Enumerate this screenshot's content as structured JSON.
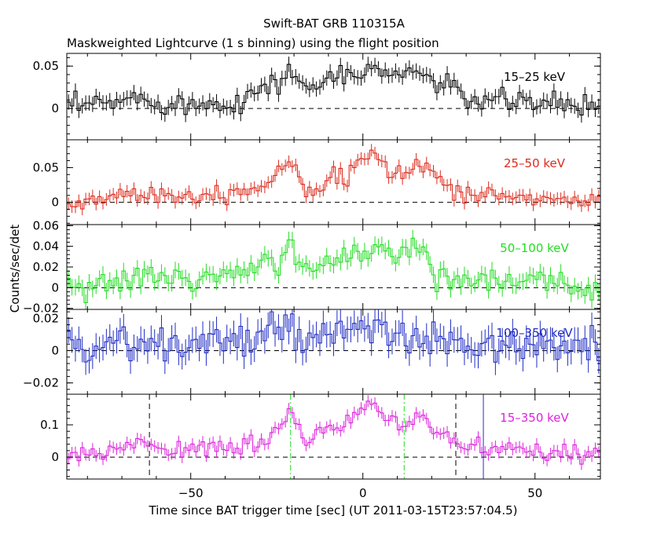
{
  "chart_data": {
    "type": "line",
    "title": "Swift-BAT GRB 110315A",
    "subtitle": "Maskweighted Lightcurve (1 s binning) using the flight position",
    "xlabel": "Time since BAT trigger time [sec] (UT 2011-03-15T23:57:04.5)",
    "ylabel": "Counts/sec/det",
    "xlim": [
      -86,
      69
    ],
    "x_ticks": [
      -50,
      0,
      50
    ],
    "x_tick_labels": [
      "−50",
      "0",
      "50"
    ],
    "panels": [
      {
        "band": "15–25 keV",
        "color": "#000000",
        "ylim": [
          -0.037,
          0.065
        ],
        "y_ticks": [
          0,
          0.05
        ],
        "y_tick_labels": [
          "0",
          "0.05"
        ],
        "error": 0.009,
        "envelope": [
          [
            -86,
            0.0
          ],
          [
            -75,
            0.006
          ],
          [
            -65,
            0.012
          ],
          [
            -50,
            0.004
          ],
          [
            -38,
            0.008
          ],
          [
            -30,
            0.02
          ],
          [
            -22,
            0.04
          ],
          [
            -18,
            0.035
          ],
          [
            -14,
            0.02
          ],
          [
            -10,
            0.04
          ],
          [
            -5,
            0.035
          ],
          [
            0,
            0.04
          ],
          [
            4,
            0.05
          ],
          [
            10,
            0.038
          ],
          [
            16,
            0.045
          ],
          [
            22,
            0.03
          ],
          [
            27,
            0.02
          ],
          [
            30,
            0.012
          ],
          [
            40,
            0.008
          ],
          [
            50,
            0.007
          ],
          [
            60,
            0.004
          ],
          [
            69,
            0.002
          ]
        ]
      },
      {
        "band": "25–50 keV",
        "color": "#dd2a1c",
        "ylim": [
          -0.032,
          0.09
        ],
        "y_ticks": [
          0,
          0.05
        ],
        "y_tick_labels": [
          "0",
          "0.05"
        ],
        "error": 0.009,
        "envelope": [
          [
            -86,
            -0.005
          ],
          [
            -75,
            0.008
          ],
          [
            -65,
            0.015
          ],
          [
            -55,
            0.01
          ],
          [
            -45,
            0.012
          ],
          [
            -35,
            0.018
          ],
          [
            -28,
            0.025
          ],
          [
            -22,
            0.06
          ],
          [
            -19,
            0.05
          ],
          [
            -17,
            0.02
          ],
          [
            -12,
            0.03
          ],
          [
            -5,
            0.035
          ],
          [
            0,
            0.055
          ],
          [
            3,
            0.075
          ],
          [
            7,
            0.045
          ],
          [
            12,
            0.04
          ],
          [
            16,
            0.06
          ],
          [
            21,
            0.04
          ],
          [
            27,
            0.015
          ],
          [
            35,
            0.01
          ],
          [
            45,
            0.008
          ],
          [
            55,
            0.004
          ],
          [
            69,
            0.002
          ]
        ]
      },
      {
        "band": "50–100 keV",
        "color": "#22dd22",
        "ylim": [
          -0.021,
          0.061
        ],
        "y_ticks": [
          -0.02,
          0,
          0.02,
          0.04,
          0.06
        ],
        "y_tick_labels": [
          "−0.02",
          "0",
          "0.02",
          "0.04",
          "0.06"
        ],
        "error": 0.008,
        "envelope": [
          [
            -86,
            0.0
          ],
          [
            -78,
            0.006
          ],
          [
            -70,
            0.004
          ],
          [
            -62,
            0.012
          ],
          [
            -50,
            0.008
          ],
          [
            -40,
            0.01
          ],
          [
            -32,
            0.016
          ],
          [
            -24,
            0.03
          ],
          [
            -21,
            0.045
          ],
          [
            -18,
            0.02
          ],
          [
            -15,
            0.01
          ],
          [
            -10,
            0.025
          ],
          [
            -4,
            0.032
          ],
          [
            0,
            0.035
          ],
          [
            3,
            0.045
          ],
          [
            6,
            0.035
          ],
          [
            10,
            0.03
          ],
          [
            14,
            0.04
          ],
          [
            17,
            0.035
          ],
          [
            21,
            0.015
          ],
          [
            30,
            0.01
          ],
          [
            40,
            0.006
          ],
          [
            50,
            0.004
          ],
          [
            60,
            0.003
          ],
          [
            69,
            0.002
          ]
        ]
      },
      {
        "band": "100–350 keV",
        "color": "#1f2cc4",
        "ylim": [
          -0.027,
          0.0255
        ],
        "y_ticks": [
          -0.02,
          0,
          0.02
        ],
        "y_tick_labels": [
          "−0.02",
          "0",
          "0.02"
        ],
        "error": 0.008,
        "envelope": [
          [
            -86,
            0.0
          ],
          [
            -75,
            0.006
          ],
          [
            -65,
            0.004
          ],
          [
            -55,
            0.002
          ],
          [
            -45,
            0.006
          ],
          [
            -35,
            0.006
          ],
          [
            -25,
            0.008
          ],
          [
            -21,
            0.016
          ],
          [
            -17,
            0.008
          ],
          [
            -10,
            0.006
          ],
          [
            -5,
            0.01
          ],
          [
            0,
            0.008
          ],
          [
            5,
            0.016
          ],
          [
            10,
            0.008
          ],
          [
            20,
            0.005
          ],
          [
            30,
            0.002
          ],
          [
            40,
            0.003
          ],
          [
            50,
            0.002
          ],
          [
            60,
            0.0
          ],
          [
            69,
            0.002
          ]
        ]
      },
      {
        "band": "15–350 keV",
        "color": "#dd22dd",
        "ylim": [
          -0.068,
          0.195
        ],
        "y_ticks": [
          0,
          0.1
        ],
        "y_tick_labels": [
          "0",
          "0.1"
        ],
        "error": 0.018,
        "envelope": [
          [
            -86,
            -0.01
          ],
          [
            -75,
            0.015
          ],
          [
            -65,
            0.05
          ],
          [
            -58,
            0.035
          ],
          [
            -50,
            0.02
          ],
          [
            -40,
            0.025
          ],
          [
            -30,
            0.04
          ],
          [
            -25,
            0.08
          ],
          [
            -21,
            0.15
          ],
          [
            -19,
            0.12
          ],
          [
            -17,
            0.04
          ],
          [
            -12,
            0.08
          ],
          [
            -6,
            0.09
          ],
          [
            -2,
            0.13
          ],
          [
            3,
            0.16
          ],
          [
            7,
            0.12
          ],
          [
            12,
            0.1
          ],
          [
            16,
            0.14
          ],
          [
            21,
            0.08
          ],
          [
            28,
            0.04
          ],
          [
            35,
            0.025
          ],
          [
            45,
            0.015
          ],
          [
            55,
            0.01
          ],
          [
            69,
            0.005
          ]
        ],
        "markers": [
          {
            "x": -62,
            "color": "#000000",
            "style": "dashed"
          },
          {
            "x": -21,
            "color": "#22dd22",
            "style": "dashdot"
          },
          {
            "x": 12,
            "color": "#22dd22",
            "style": "dashdot"
          },
          {
            "x": 27,
            "color": "#000000",
            "style": "dashed"
          },
          {
            "x": 35,
            "color": "#1f2cc4",
            "style": "solid"
          }
        ]
      }
    ]
  }
}
